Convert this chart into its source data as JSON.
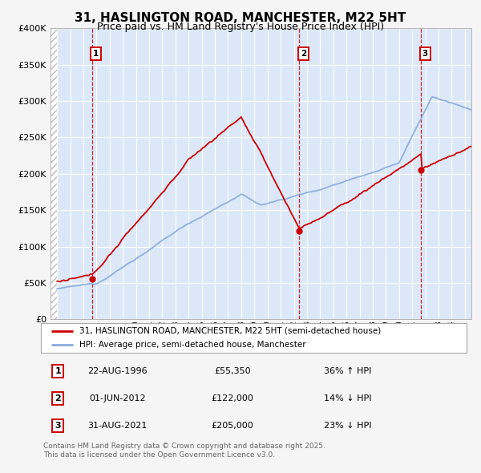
{
  "title": "31, HASLINGTON ROAD, MANCHESTER, M22 5HT",
  "subtitle": "Price paid vs. HM Land Registry's House Price Index (HPI)",
  "legend_property": "31, HASLINGTON ROAD, MANCHESTER, M22 5HT (semi-detached house)",
  "legend_hpi": "HPI: Average price, semi-detached house, Manchester",
  "footer": "Contains HM Land Registry data © Crown copyright and database right 2025.\nThis data is licensed under the Open Government Licence v3.0.",
  "sale_points": [
    {
      "n": 1,
      "date": "22-AUG-1996",
      "price": 55350,
      "note": "36% ↑ HPI",
      "x_year": 1996.64
    },
    {
      "n": 2,
      "date": "01-JUN-2012",
      "price": 122000,
      "note": "14% ↓ HPI",
      "x_year": 2012.42
    },
    {
      "n": 3,
      "date": "31-AUG-2021",
      "price": 205000,
      "note": "23% ↓ HPI",
      "x_year": 2021.67
    }
  ],
  "ylim": [
    0,
    400000
  ],
  "xlim_start": 1993.5,
  "xlim_end": 2025.5,
  "property_color": "#cc0000",
  "hpi_color": "#88aadd",
  "background_color": "#f5f5f5",
  "plot_bg": "#dce8f8",
  "sale_box_color": "#cc0000",
  "dashed_line_color": "#cc0000",
  "title_fontsize": 11,
  "subtitle_fontsize": 9
}
